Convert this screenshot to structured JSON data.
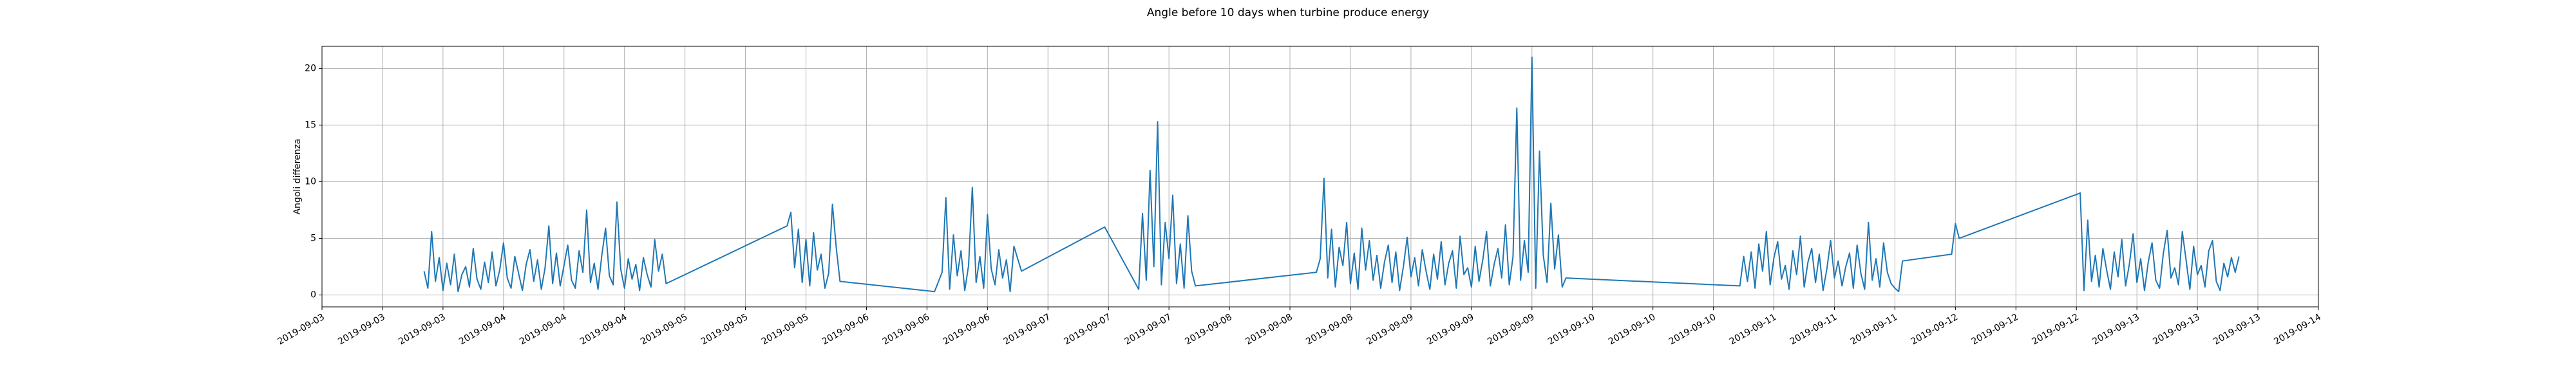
{
  "chart_data": {
    "type": "line",
    "title": "Angle before 10 days when turbine produce energy",
    "y_label": "Angoli differenza",
    "color": "#1f77b4",
    "grid": true,
    "xlim": [
      "2019-09-03 00:00",
      "2019-09-14 00:00"
    ],
    "ylim": [
      -1.05,
      21.95
    ],
    "yticks": [
      0,
      5,
      10,
      15,
      20
    ],
    "xticks": [
      {
        "value": "2019-09-03 00:00",
        "label": "2019-09-03"
      },
      {
        "value": "2019-09-03 08:00",
        "label": "2019-09-03"
      },
      {
        "value": "2019-09-03 16:00",
        "label": "2019-09-03"
      },
      {
        "value": "2019-09-04 00:00",
        "label": "2019-09-04"
      },
      {
        "value": "2019-09-04 08:00",
        "label": "2019-09-04"
      },
      {
        "value": "2019-09-04 16:00",
        "label": "2019-09-04"
      },
      {
        "value": "2019-09-05 00:00",
        "label": "2019-09-05"
      },
      {
        "value": "2019-09-05 08:00",
        "label": "2019-09-05"
      },
      {
        "value": "2019-09-05 16:00",
        "label": "2019-09-05"
      },
      {
        "value": "2019-09-06 00:00",
        "label": "2019-09-06"
      },
      {
        "value": "2019-09-06 08:00",
        "label": "2019-09-06"
      },
      {
        "value": "2019-09-06 16:00",
        "label": "2019-09-06"
      },
      {
        "value": "2019-09-07 00:00",
        "label": "2019-09-07"
      },
      {
        "value": "2019-09-07 08:00",
        "label": "2019-09-07"
      },
      {
        "value": "2019-09-07 16:00",
        "label": "2019-09-07"
      },
      {
        "value": "2019-09-08 00:00",
        "label": "2019-09-08"
      },
      {
        "value": "2019-09-08 08:00",
        "label": "2019-09-08"
      },
      {
        "value": "2019-09-08 16:00",
        "label": "2019-09-08"
      },
      {
        "value": "2019-09-09 00:00",
        "label": "2019-09-09"
      },
      {
        "value": "2019-09-09 08:00",
        "label": "2019-09-09"
      },
      {
        "value": "2019-09-09 16:00",
        "label": "2019-09-09"
      },
      {
        "value": "2019-09-10 00:00",
        "label": "2019-09-10"
      },
      {
        "value": "2019-09-10 08:00",
        "label": "2019-09-10"
      },
      {
        "value": "2019-09-10 16:00",
        "label": "2019-09-10"
      },
      {
        "value": "2019-09-11 00:00",
        "label": "2019-09-11"
      },
      {
        "value": "2019-09-11 08:00",
        "label": "2019-09-11"
      },
      {
        "value": "2019-09-11 16:00",
        "label": "2019-09-11"
      },
      {
        "value": "2019-09-12 00:00",
        "label": "2019-09-12"
      },
      {
        "value": "2019-09-12 08:00",
        "label": "2019-09-12"
      },
      {
        "value": "2019-09-12 16:00",
        "label": "2019-09-12"
      },
      {
        "value": "2019-09-13 00:00",
        "label": "2019-09-13"
      },
      {
        "value": "2019-09-13 08:00",
        "label": "2019-09-13"
      },
      {
        "value": "2019-09-13 16:00",
        "label": "2019-09-13"
      },
      {
        "value": "2019-09-14 00:00",
        "label": "2019-09-14"
      }
    ],
    "x": [
      "2019-09-03 13:30",
      "2019-09-03 14:00",
      "2019-09-03 14:30",
      "2019-09-03 15:00",
      "2019-09-03 15:30",
      "2019-09-03 16:00",
      "2019-09-03 16:30",
      "2019-09-03 17:00",
      "2019-09-03 17:30",
      "2019-09-03 18:00",
      "2019-09-03 18:30",
      "2019-09-03 19:00",
      "2019-09-03 19:30",
      "2019-09-03 20:00",
      "2019-09-03 20:30",
      "2019-09-03 21:00",
      "2019-09-03 21:30",
      "2019-09-03 22:00",
      "2019-09-03 22:30",
      "2019-09-03 23:00",
      "2019-09-03 23:30",
      "2019-09-04 00:00",
      "2019-09-04 00:30",
      "2019-09-04 01:00",
      "2019-09-04 01:30",
      "2019-09-04 02:00",
      "2019-09-04 02:30",
      "2019-09-04 03:00",
      "2019-09-04 03:30",
      "2019-09-04 04:00",
      "2019-09-04 04:30",
      "2019-09-04 05:00",
      "2019-09-04 05:30",
      "2019-09-04 06:00",
      "2019-09-04 06:30",
      "2019-09-04 07:00",
      "2019-09-04 07:30",
      "2019-09-04 08:00",
      "2019-09-04 08:30",
      "2019-09-04 09:00",
      "2019-09-04 09:30",
      "2019-09-04 10:00",
      "2019-09-04 10:30",
      "2019-09-04 11:00",
      "2019-09-04 11:30",
      "2019-09-04 12:00",
      "2019-09-04 12:30",
      "2019-09-04 13:00",
      "2019-09-04 13:30",
      "2019-09-04 14:00",
      "2019-09-04 14:30",
      "2019-09-04 15:00",
      "2019-09-04 15:30",
      "2019-09-04 16:00",
      "2019-09-04 16:30",
      "2019-09-04 17:00",
      "2019-09-04 17:30",
      "2019-09-04 18:00",
      "2019-09-04 18:30",
      "2019-09-04 19:00",
      "2019-09-04 19:30",
      "2019-09-04 20:00",
      "2019-09-04 20:30",
      "2019-09-04 21:00",
      "2019-09-04 21:30",
      "2019-09-05 13:30",
      "2019-09-05 14:00",
      "2019-09-05 14:30",
      "2019-09-05 15:00",
      "2019-09-05 15:30",
      "2019-09-05 16:00",
      "2019-09-05 16:30",
      "2019-09-05 17:00",
      "2019-09-05 17:30",
      "2019-09-05 18:00",
      "2019-09-05 18:30",
      "2019-09-05 19:00",
      "2019-09-05 19:30",
      "2019-09-05 20:00",
      "2019-09-05 20:30",
      "2019-09-06 09:00",
      "2019-09-06 10:00",
      "2019-09-06 10:30",
      "2019-09-06 11:00",
      "2019-09-06 11:30",
      "2019-09-06 12:00",
      "2019-09-06 12:30",
      "2019-09-06 13:00",
      "2019-09-06 13:30",
      "2019-09-06 14:00",
      "2019-09-06 14:30",
      "2019-09-06 15:00",
      "2019-09-06 15:30",
      "2019-09-06 16:00",
      "2019-09-06 16:30",
      "2019-09-06 17:00",
      "2019-09-06 17:30",
      "2019-09-06 18:00",
      "2019-09-06 18:30",
      "2019-09-06 19:00",
      "2019-09-06 19:30",
      "2019-09-06 20:30",
      "2019-09-07 07:30",
      "2019-09-07 12:00",
      "2019-09-07 12:30",
      "2019-09-07 13:00",
      "2019-09-07 13:30",
      "2019-09-07 14:00",
      "2019-09-07 14:30",
      "2019-09-07 15:00",
      "2019-09-07 15:30",
      "2019-09-07 16:00",
      "2019-09-07 16:30",
      "2019-09-07 17:00",
      "2019-09-07 17:30",
      "2019-09-07 18:00",
      "2019-09-07 18:30",
      "2019-09-07 19:00",
      "2019-09-07 19:30",
      "2019-09-08 11:30",
      "2019-09-08 12:00",
      "2019-09-08 12:30",
      "2019-09-08 13:00",
      "2019-09-08 13:30",
      "2019-09-08 14:00",
      "2019-09-08 14:30",
      "2019-09-08 15:00",
      "2019-09-08 15:30",
      "2019-09-08 16:00",
      "2019-09-08 16:30",
      "2019-09-08 17:00",
      "2019-09-08 17:30",
      "2019-09-08 18:00",
      "2019-09-08 18:30",
      "2019-09-08 19:00",
      "2019-09-08 19:30",
      "2019-09-08 20:00",
      "2019-09-08 20:30",
      "2019-09-08 21:00",
      "2019-09-08 21:30",
      "2019-09-08 22:00",
      "2019-09-08 22:30",
      "2019-09-08 23:00",
      "2019-09-08 23:30",
      "2019-09-09 00:00",
      "2019-09-09 00:30",
      "2019-09-09 01:00",
      "2019-09-09 01:30",
      "2019-09-09 02:00",
      "2019-09-09 02:30",
      "2019-09-09 03:00",
      "2019-09-09 03:30",
      "2019-09-09 04:00",
      "2019-09-09 04:30",
      "2019-09-09 05:00",
      "2019-09-09 05:30",
      "2019-09-09 06:00",
      "2019-09-09 06:30",
      "2019-09-09 07:00",
      "2019-09-09 07:30",
      "2019-09-09 08:00",
      "2019-09-09 08:30",
      "2019-09-09 09:00",
      "2019-09-09 09:30",
      "2019-09-09 10:00",
      "2019-09-09 10:30",
      "2019-09-09 11:00",
      "2019-09-09 11:30",
      "2019-09-09 12:00",
      "2019-09-09 12:30",
      "2019-09-09 13:00",
      "2019-09-09 13:30",
      "2019-09-09 14:00",
      "2019-09-09 14:30",
      "2019-09-09 15:00",
      "2019-09-09 15:30",
      "2019-09-09 16:00",
      "2019-09-09 16:30",
      "2019-09-09 17:00",
      "2019-09-09 17:30",
      "2019-09-09 18:00",
      "2019-09-09 18:30",
      "2019-09-09 19:00",
      "2019-09-09 19:30",
      "2019-09-09 20:00",
      "2019-09-09 20:30",
      "2019-09-10 19:30",
      "2019-09-10 20:00",
      "2019-09-10 20:30",
      "2019-09-10 21:00",
      "2019-09-10 21:30",
      "2019-09-10 22:00",
      "2019-09-10 22:30",
      "2019-09-10 23:00",
      "2019-09-10 23:30",
      "2019-09-11 00:00",
      "2019-09-11 00:30",
      "2019-09-11 01:00",
      "2019-09-11 01:30",
      "2019-09-11 02:00",
      "2019-09-11 02:30",
      "2019-09-11 03:00",
      "2019-09-11 03:30",
      "2019-09-11 04:00",
      "2019-09-11 04:30",
      "2019-09-11 05:00",
      "2019-09-11 05:30",
      "2019-09-11 06:00",
      "2019-09-11 06:30",
      "2019-09-11 07:00",
      "2019-09-11 07:30",
      "2019-09-11 08:00",
      "2019-09-11 08:30",
      "2019-09-11 09:00",
      "2019-09-11 09:30",
      "2019-09-11 10:00",
      "2019-09-11 10:30",
      "2019-09-11 11:00",
      "2019-09-11 11:30",
      "2019-09-11 12:00",
      "2019-09-11 12:30",
      "2019-09-11 13:00",
      "2019-09-11 13:30",
      "2019-09-11 14:00",
      "2019-09-11 14:30",
      "2019-09-11 15:00",
      "2019-09-11 15:30",
      "2019-09-11 16:00",
      "2019-09-11 16:30",
      "2019-09-11 17:00",
      "2019-09-11 23:30",
      "2019-09-12 00:00",
      "2019-09-12 00:30",
      "2019-09-12 16:30",
      "2019-09-12 17:00",
      "2019-09-12 17:30",
      "2019-09-12 18:00",
      "2019-09-12 18:30",
      "2019-09-12 19:00",
      "2019-09-12 19:30",
      "2019-09-12 20:00",
      "2019-09-12 20:30",
      "2019-09-12 21:00",
      "2019-09-12 21:30",
      "2019-09-12 22:00",
      "2019-09-12 22:30",
      "2019-09-12 23:00",
      "2019-09-12 23:30",
      "2019-09-13 00:00",
      "2019-09-13 00:30",
      "2019-09-13 01:00",
      "2019-09-13 01:30",
      "2019-09-13 02:00",
      "2019-09-13 02:30",
      "2019-09-13 03:00",
      "2019-09-13 03:30",
      "2019-09-13 04:00",
      "2019-09-13 04:30",
      "2019-09-13 05:00",
      "2019-09-13 05:30",
      "2019-09-13 06:00",
      "2019-09-13 06:30",
      "2019-09-13 07:00",
      "2019-09-13 07:30",
      "2019-09-13 08:00",
      "2019-09-13 08:30",
      "2019-09-13 09:00",
      "2019-09-13 09:30",
      "2019-09-13 10:00",
      "2019-09-13 10:30",
      "2019-09-13 11:00",
      "2019-09-13 11:30",
      "2019-09-13 12:00",
      "2019-09-13 12:30",
      "2019-09-13 13:00",
      "2019-09-13 13:30"
    ],
    "values": [
      2.1,
      0.6,
      5.6,
      1.2,
      3.3,
      0.4,
      2.8,
      0.9,
      3.6,
      0.3,
      1.8,
      2.5,
      0.7,
      4.1,
      1.4,
      0.5,
      2.9,
      1.1,
      3.8,
      0.8,
      2.2,
      4.6,
      1.5,
      0.6,
      3.4,
      1.9,
      0.4,
      2.7,
      4.0,
      1.2,
      3.1,
      0.5,
      2.4,
      6.1,
      1.0,
      3.7,
      0.8,
      2.6,
      4.4,
      1.3,
      0.6,
      3.9,
      2.0,
      7.5,
      1.1,
      2.8,
      0.5,
      3.5,
      5.9,
      1.7,
      0.9,
      8.2,
      2.3,
      0.6,
      3.2,
      1.4,
      2.7,
      0.4,
      3.3,
      1.8,
      0.7,
      4.9,
      2.1,
      3.6,
      1.0,
      6.1,
      7.3,
      2.4,
      5.8,
      1.1,
      4.9,
      0.8,
      5.5,
      2.2,
      3.6,
      0.6,
      1.9,
      8.0,
      4.2,
      1.2,
      0.3,
      2.0,
      8.6,
      0.5,
      5.3,
      1.7,
      3.9,
      0.4,
      2.6,
      9.5,
      1.1,
      3.4,
      0.6,
      7.1,
      2.3,
      0.9,
      4.0,
      1.5,
      3.1,
      0.3,
      4.3,
      2.1,
      6.0,
      0.5,
      7.2,
      1.3,
      11.0,
      2.5,
      15.3,
      0.9,
      6.4,
      3.2,
      8.8,
      1.0,
      4.5,
      0.6,
      7.0,
      2.1,
      0.8,
      2.0,
      3.2,
      10.3,
      1.5,
      5.8,
      0.7,
      4.2,
      2.6,
      6.4,
      1.0,
      3.7,
      0.5,
      5.9,
      2.2,
      4.8,
      1.3,
      3.5,
      0.6,
      2.9,
      4.4,
      1.1,
      3.8,
      0.4,
      2.5,
      5.1,
      1.6,
      3.3,
      0.8,
      4.0,
      2.1,
      0.5,
      3.6,
      1.4,
      4.7,
      0.9,
      2.8,
      3.9,
      0.6,
      5.2,
      1.8,
      2.4,
      0.7,
      4.3,
      1.2,
      3.1,
      5.6,
      0.8,
      2.7,
      4.1,
      1.5,
      6.2,
      0.9,
      3.4,
      16.5,
      1.3,
      4.8,
      2.0,
      21.0,
      0.6,
      12.7,
      3.5,
      1.1,
      8.1,
      2.3,
      5.3,
      0.7,
      1.5,
      0.8,
      3.4,
      1.2,
      3.8,
      0.6,
      4.5,
      2.1,
      5.6,
      0.9,
      3.3,
      4.7,
      1.4,
      2.6,
      0.5,
      3.9,
      1.8,
      5.2,
      0.7,
      2.9,
      4.1,
      1.1,
      3.6,
      0.4,
      2.3,
      4.8,
      1.5,
      3.0,
      0.8,
      2.5,
      3.7,
      0.6,
      4.4,
      1.9,
      0.5,
      6.4,
      1.3,
      3.2,
      0.7,
      4.6,
      2.0,
      1.0,
      0.6,
      0.3,
      3.0,
      3.6,
      6.3,
      5.0,
      9.0,
      0.4,
      6.6,
      1.2,
      3.5,
      0.7,
      4.1,
      2.2,
      0.5,
      3.8,
      1.6,
      4.9,
      0.8,
      2.7,
      5.4,
      1.1,
      3.2,
      0.4,
      2.9,
      4.6,
      1.3,
      0.6,
      3.7,
      5.7,
      1.5,
      2.4,
      0.9,
      5.6,
      3.1,
      0.5,
      4.3,
      1.8,
      2.6,
      0.7,
      3.9,
      4.8,
      1.2,
      0.4,
      2.8,
      1.6,
      3.3,
      2.0,
      3.4
    ]
  }
}
